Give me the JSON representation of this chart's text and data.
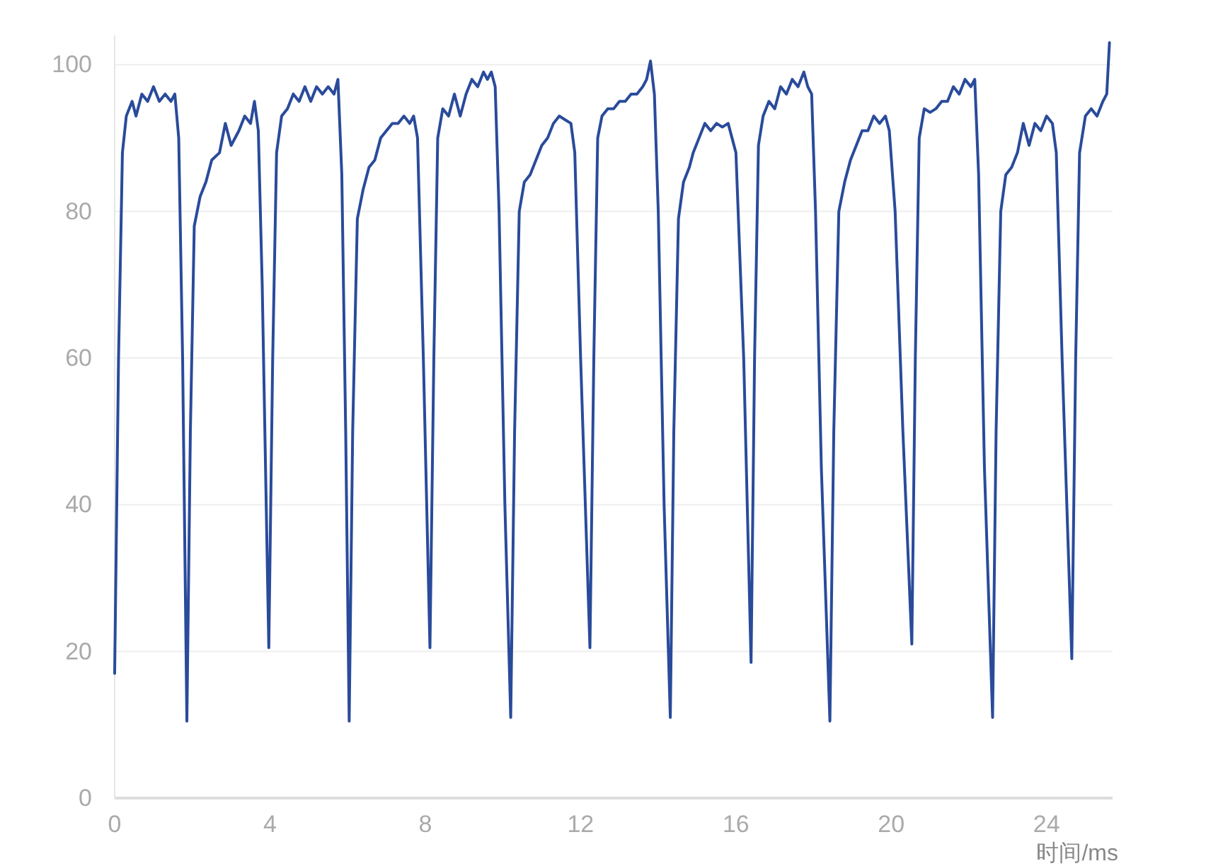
{
  "chart_data": {
    "type": "line",
    "xlabel": "时间/ms",
    "xlim": [
      0,
      25.7
    ],
    "xticks": [
      0,
      4,
      8,
      12,
      16,
      20,
      24
    ],
    "ylim": [
      0,
      104
    ],
    "yticks": [
      0,
      20,
      40,
      60,
      80,
      100
    ],
    "grid": "y",
    "marker": "none",
    "line_style": "solid",
    "series": [
      {
        "color": "#2a4b9b",
        "x": [
          0,
          0.1,
          0.2,
          0.3,
          0.45,
          0.55,
          0.7,
          0.85,
          1.0,
          1.15,
          1.3,
          1.45,
          1.55,
          1.65,
          1.75,
          1.86,
          1.95,
          2.05,
          2.2,
          2.35,
          2.5,
          2.7,
          2.85,
          3.0,
          3.2,
          3.35,
          3.5,
          3.6,
          3.7,
          3.8,
          3.97,
          4.07,
          4.17,
          4.3,
          4.45,
          4.6,
          4.75,
          4.9,
          5.05,
          5.2,
          5.35,
          5.5,
          5.65,
          5.75,
          5.85,
          5.95,
          6.04,
          6.13,
          6.25,
          6.4,
          6.55,
          6.7,
          6.85,
          7.0,
          7.15,
          7.3,
          7.45,
          7.6,
          7.7,
          7.8,
          7.95,
          8.12,
          8.22,
          8.32,
          8.45,
          8.6,
          8.75,
          8.9,
          9.05,
          9.2,
          9.35,
          9.5,
          9.6,
          9.7,
          9.8,
          9.9,
          10.05,
          10.2,
          10.3,
          10.42,
          10.55,
          10.7,
          10.85,
          11.0,
          11.15,
          11.3,
          11.45,
          11.6,
          11.75,
          11.85,
          12.0,
          12.24,
          12.34,
          12.44,
          12.55,
          12.7,
          12.85,
          13.0,
          13.15,
          13.3,
          13.45,
          13.6,
          13.7,
          13.8,
          13.9,
          14.0,
          14.15,
          14.31,
          14.4,
          14.52,
          14.65,
          14.8,
          14.9,
          15.05,
          15.2,
          15.35,
          15.5,
          15.65,
          15.8,
          15.9,
          16.0,
          16.2,
          16.39,
          16.48,
          16.58,
          16.7,
          16.85,
          17.0,
          17.15,
          17.3,
          17.45,
          17.6,
          17.75,
          17.85,
          17.95,
          18.05,
          18.2,
          18.42,
          18.52,
          18.65,
          18.8,
          18.95,
          19.1,
          19.25,
          19.4,
          19.55,
          19.7,
          19.85,
          19.95,
          20.1,
          20.3,
          20.53,
          20.62,
          20.72,
          20.85,
          21.0,
          21.15,
          21.3,
          21.45,
          21.6,
          21.75,
          21.9,
          22.05,
          22.15,
          22.25,
          22.4,
          22.61,
          22.7,
          22.82,
          22.95,
          23.1,
          23.25,
          23.4,
          23.55,
          23.7,
          23.85,
          24.0,
          24.15,
          24.25,
          24.4,
          24.65,
          24.75,
          24.85,
          25.0,
          25.15,
          25.3,
          25.45,
          25.55,
          25.62
        ],
        "values": [
          17,
          60,
          88,
          93,
          95,
          93,
          96,
          95,
          97,
          95,
          96,
          95,
          96,
          90,
          60,
          10.5,
          50,
          78,
          82,
          84,
          87,
          88,
          92,
          89,
          91,
          93,
          92,
          95,
          91,
          70,
          20.5,
          60,
          88,
          93,
          94,
          96,
          95,
          97,
          95,
          97,
          96,
          97,
          96,
          98,
          85,
          50,
          10.5,
          50,
          79,
          83,
          86,
          87,
          90,
          91,
          92,
          92,
          93,
          92,
          93,
          90,
          60,
          20.5,
          60,
          90,
          94,
          93,
          96,
          93,
          96,
          98,
          97,
          99,
          98,
          99,
          97,
          80,
          40,
          11,
          50,
          80,
          84,
          85,
          87,
          89,
          90,
          92,
          93,
          92.5,
          92,
          88,
          60,
          20.5,
          60,
          90,
          93,
          94,
          94,
          95,
          95,
          96,
          96,
          97,
          98,
          100.5,
          96,
          80,
          40,
          11,
          50,
          79,
          84,
          86,
          88,
          90,
          92,
          91,
          92,
          91.5,
          92,
          90,
          88,
          60,
          18.5,
          60,
          89,
          93,
          95,
          94,
          97,
          96,
          98,
          97,
          99,
          97,
          96,
          80,
          45,
          10.5,
          50,
          80,
          84,
          87,
          89,
          91,
          91,
          93,
          92,
          93,
          91,
          80,
          50,
          21,
          60,
          90,
          94,
          93.5,
          94,
          95,
          95,
          97,
          96,
          98,
          97,
          98,
          85,
          45,
          11,
          50,
          80,
          85,
          86,
          88,
          92,
          89,
          92,
          91,
          93,
          92,
          88,
          60,
          19,
          60,
          88,
          93,
          94,
          93,
          95,
          96,
          103
        ]
      }
    ]
  }
}
